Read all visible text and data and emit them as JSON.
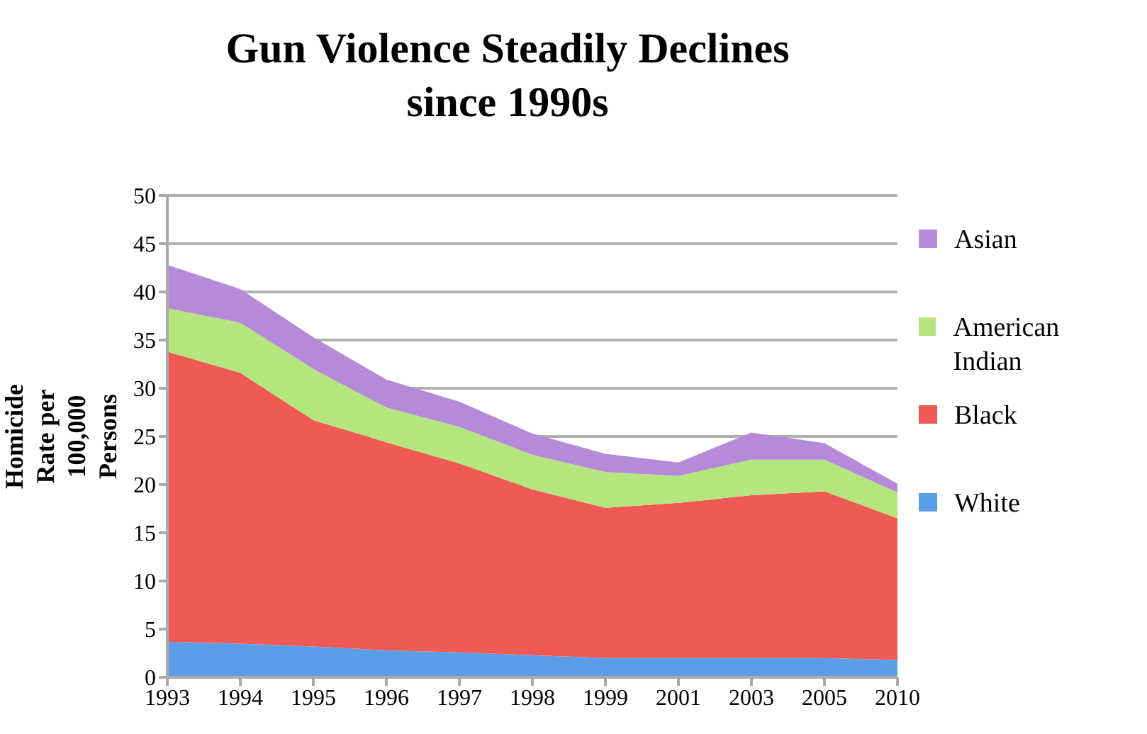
{
  "chart_data": {
    "type": "area",
    "stacked": true,
    "title": "Gun Violence Steadily Declines since 1990s",
    "ylabel": "Homicide Rate per 100,000 Persons",
    "categories": [
      "1993",
      "1994",
      "1995",
      "1996",
      "1997",
      "1998",
      "1999",
      "2001",
      "2003",
      "2005",
      "2010"
    ],
    "series": [
      {
        "name": "White",
        "color": "#5a9ee8",
        "values": [
          3.7,
          3.5,
          3.2,
          2.8,
          2.6,
          2.3,
          2.0,
          2.0,
          2.0,
          2.0,
          1.8
        ]
      },
      {
        "name": "Black",
        "color": "#f05a55",
        "values": [
          30.1,
          28.1,
          23.5,
          21.6,
          19.6,
          17.2,
          15.6,
          16.1,
          16.9,
          17.3,
          14.7
        ]
      },
      {
        "name": "American Indian",
        "color": "#b5e67d",
        "values": [
          4.5,
          5.2,
          5.3,
          3.6,
          3.8,
          3.6,
          3.7,
          2.8,
          3.7,
          3.3,
          2.7
        ]
      },
      {
        "name": "Asian",
        "color": "#b58ad8",
        "values": [
          4.5,
          3.5,
          3.3,
          2.9,
          2.6,
          2.2,
          1.9,
          1.4,
          2.8,
          1.7,
          0.9
        ]
      }
    ],
    "ylim": [
      0,
      50
    ],
    "yticks": [
      0,
      5,
      10,
      15,
      20,
      25,
      30,
      35,
      40,
      45,
      50
    ],
    "grid": "y",
    "legend": "right"
  }
}
